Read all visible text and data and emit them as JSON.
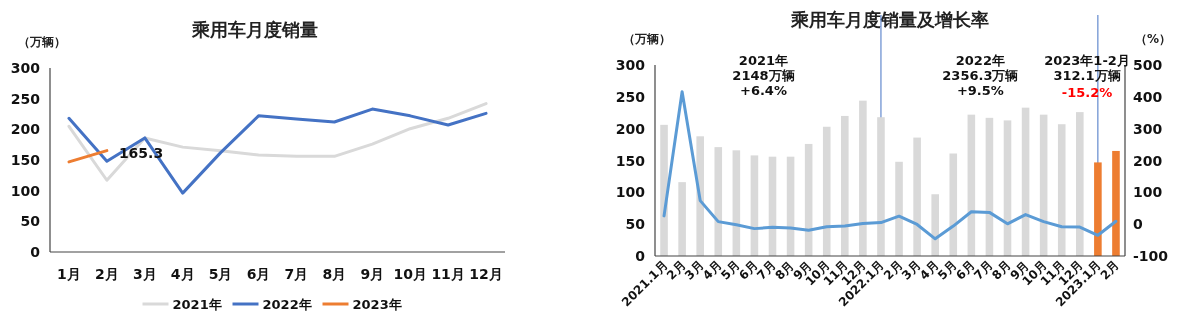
{
  "chart_data": [
    {
      "type": "line",
      "title": "乘用车月度销量",
      "ylabel": "（万辆）",
      "categories": [
        "1月",
        "2月",
        "3月",
        "4月",
        "5月",
        "6月",
        "7月",
        "8月",
        "9月",
        "10月",
        "11月",
        "12月"
      ],
      "series": [
        {
          "name": "2021年",
          "color": "#d9d9d9",
          "values": [
            205,
            117,
            186,
            171,
            165,
            158,
            156,
            156,
            176,
            201,
            218,
            242
          ]
        },
        {
          "name": "2022年",
          "color": "#4472c4",
          "values": [
            218,
            148,
            186,
            96,
            162,
            222,
            217,
            212,
            233,
            222,
            207,
            226
          ]
        },
        {
          "name": "2023年",
          "color": "#ed7d31",
          "values": [
            147,
            165.3,
            null,
            null,
            null,
            null,
            null,
            null,
            null,
            null,
            null,
            null
          ],
          "value_labels": [
            null,
            "165.3",
            null,
            null,
            null,
            null,
            null,
            null,
            null,
            null,
            null,
            null
          ]
        }
      ],
      "ylim": [
        0,
        300
      ],
      "yticks": [
        0,
        50,
        100,
        150,
        200,
        250,
        300
      ],
      "grid": false,
      "legend": "bottom"
    },
    {
      "type": "bar",
      "title": "乘用车月度销量及增长率",
      "ylabel": "（万辆）",
      "y2label": "（%）",
      "categories": [
        "2021.1月",
        "2月",
        "3月",
        "4月",
        "5月",
        "6月",
        "7月",
        "8月",
        "9月",
        "10月",
        "11月",
        "12月",
        "2022.1月",
        "2月",
        "3月",
        "4月",
        "5月",
        "6月",
        "7月",
        "8月",
        "9月",
        "10月",
        "11月",
        "12月",
        "2023.1月",
        "2月"
      ],
      "series": [
        {
          "colors": [
            "#d9d9d9",
            "#d9d9d9",
            "#d9d9d9",
            "#d9d9d9",
            "#d9d9d9",
            "#d9d9d9",
            "#d9d9d9",
            "#d9d9d9",
            "#d9d9d9",
            "#d9d9d9",
            "#d9d9d9",
            "#d9d9d9",
            "#d9d9d9",
            "#d9d9d9",
            "#d9d9d9",
            "#d9d9d9",
            "#d9d9d9",
            "#d9d9d9",
            "#d9d9d9",
            "#d9d9d9",
            "#d9d9d9",
            "#d9d9d9",
            "#d9d9d9",
            "#d9d9d9",
            "#ed7d31",
            "#ed7d31"
          ],
          "values": [
            206,
            116,
            188,
            171,
            166,
            158,
            156,
            156,
            176,
            203,
            220,
            244,
            218,
            148,
            186,
            97,
            161,
            222,
            217,
            213,
            233,
            222,
            207,
            226,
            147,
            165
          ]
        },
        {
          "type": "line",
          "axis": "y2",
          "color": "#5b9bd5",
          "values": [
            26,
            416,
            74,
            8,
            -2,
            -14,
            -10,
            -12,
            -19,
            -8,
            -6,
            2,
            5,
            25,
            -1,
            -46,
            -6,
            39,
            37,
            1,
            30,
            8,
            -8,
            -9,
            -35,
            9
          ]
        }
      ],
      "ylim": [
        0,
        300
      ],
      "yticks": [
        0,
        50,
        100,
        150,
        200,
        250,
        300
      ],
      "y2lim": [
        -100,
        500
      ],
      "y2ticks": [
        -100,
        0,
        100,
        200,
        300,
        400,
        500
      ],
      "ref_lines": [
        {
          "axis": "x",
          "value": "2022.1月",
          "color": "#4472c4"
        },
        {
          "axis": "x",
          "value": "2023.1月",
          "color": "#4472c4"
        }
      ],
      "annotations": [
        "2021年\n2148万辆\n+6.4%",
        "2022年\n2356.3万辆\n+9.5%",
        "2023年1-2月\n312.1万辆",
        "-15.2%"
      ],
      "grid": false
    }
  ]
}
